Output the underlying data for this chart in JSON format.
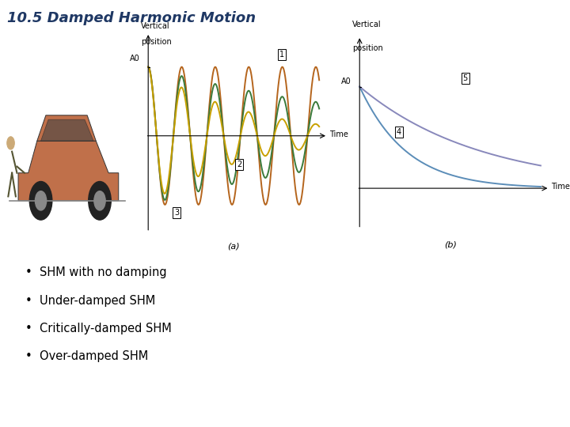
{
  "title": "10.5 Damped Harmonic Motion",
  "title_color": "#1F3864",
  "title_style": "italic",
  "title_fontsize": 13,
  "bullet_items": [
    "SHM with no damping",
    "Under-damped SHM",
    "Critically-damped SHM",
    "Over-damped SHM"
  ],
  "bullet_fontsize": 10.5,
  "fig_label_a": "(a)",
  "fig_label_b": "(b)",
  "graph_a": {
    "ylabel1": "Vertical",
    "ylabel2": "position",
    "y0_label": "A0",
    "xlabel": "Time",
    "curve1_color": "#B5651D",
    "curve2_color": "#3A7A3A",
    "curve3_color": "#C8A000",
    "label1": "1",
    "label2": "2",
    "label3": "3"
  },
  "graph_b": {
    "ylabel1": "Vertical",
    "ylabel2": "position",
    "y0_label": "A0",
    "xlabel": "Time",
    "curve4_color": "#5B8DB8",
    "curve5_color": "#8888BB",
    "label4": "4",
    "label5": "5"
  },
  "background_color": "#FFFFFF"
}
